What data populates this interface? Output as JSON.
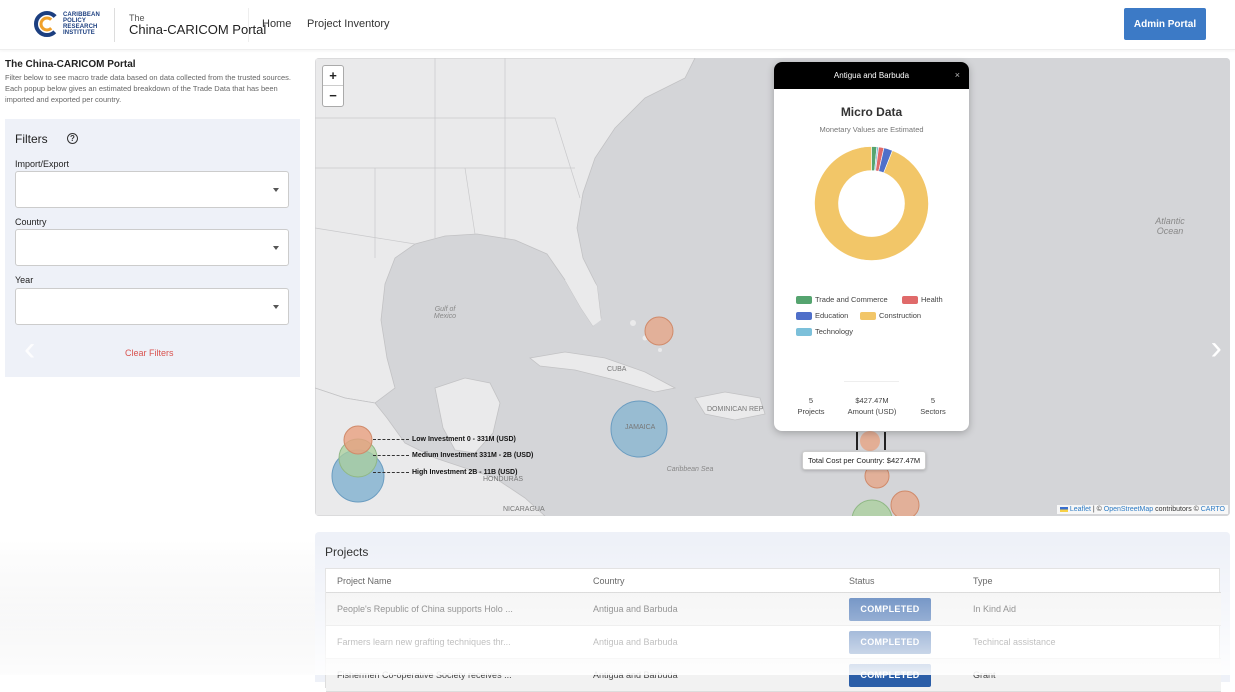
{
  "header": {
    "logo_lines": [
      "Caribbean",
      "Policy",
      "Research",
      "Institute"
    ],
    "brand_the": "The",
    "brand_name": "China-CARICOM Portal",
    "nav": [
      "Home",
      "Project Inventory"
    ],
    "admin_label": "Admin Portal"
  },
  "intro": {
    "title": "The China-CARICOM Portal",
    "text": "Filter below to see macro trade data based on data collected from the trusted sources. Each popup below gives an estimated breakdown of the Trade Data that has been imported and exported per country."
  },
  "filters": {
    "title": "Filters",
    "help_glyph": "?",
    "import_export_label": "Import/Export",
    "country_label": "Country",
    "year_label": "Year",
    "import_export_value": "",
    "country_value": "",
    "year_value": "",
    "clear_label": "Clear Filters"
  },
  "map": {
    "zoom_in": "+",
    "zoom_out": "−",
    "labels": {
      "gulf": "Gulf of Mexico",
      "atlantic": "Atlantic Ocean",
      "caribbean": "Caribbean Sea",
      "cuba": "CUBA",
      "jamaica": "JAMAICA",
      "dominican": "DOMINICAN REP",
      "honduras": "HONDURAS",
      "nicaragua": "NICARAGUA"
    },
    "legend": [
      {
        "label": "Low Investment 0 - 331M (USD)",
        "color": "#e8a07f"
      },
      {
        "label": "Medium Investment 331M - 2B (USD)",
        "color": "#a9cf9c"
      },
      {
        "label": "High Investment 2B - 11B (USD)",
        "color": "#7fb0d0"
      }
    ],
    "tooltip": "Total Cost per Country: $427.47M",
    "attribution_leaflet": "Leaflet",
    "attribution_rest": "| © OpenStreetMap contributors © CARTO",
    "attribution_osm": "OpenStreetMap",
    "attribution_carto": "CARTO"
  },
  "popup": {
    "country": "Antigua and Barbuda",
    "close": "×",
    "title": "Micro Data",
    "subtitle": "Monetary Values are Estimated",
    "legend": [
      {
        "label": "Trade and Commerce",
        "color": "#55a46f"
      },
      {
        "label": "Health",
        "color": "#e06a6a"
      },
      {
        "label": "Education",
        "color": "#4f6fc9"
      },
      {
        "label": "Construction",
        "color": "#f2c668"
      },
      {
        "label": "Technology",
        "color": "#7cc0da"
      }
    ],
    "stats": {
      "projects_value": "5",
      "projects_label": "Projects",
      "amount_value": "$427.47M",
      "amount_label": "Amount (USD)",
      "sectors_value": "5",
      "sectors_label": "Sectors"
    }
  },
  "chart_data": {
    "type": "pie",
    "categories": [
      "Trade and Commerce",
      "Health",
      "Education",
      "Construction",
      "Technology"
    ],
    "values": [
      1.5,
      1.5,
      2.5,
      94,
      0.5
    ],
    "title": "Micro Data",
    "subtitle": "Monetary Values are Estimated",
    "legend": "bottom"
  },
  "projects": {
    "title": "Projects",
    "headers": [
      "Project Name",
      "Country",
      "Status",
      "Type"
    ],
    "rows": [
      {
        "name": "People's Republic of China supports Holo ...",
        "country": "Antigua and Barbuda",
        "status": "COMPLETED",
        "type": "In Kind Aid"
      },
      {
        "name": "Farmers learn new grafting techniques thr...",
        "country": "Antigua and Barbuda",
        "status": "COMPLETED",
        "type": "Techincal assistance"
      },
      {
        "name": "Fishermen Co-operative Society receives ...",
        "country": "Antigua and Barbuda",
        "status": "COMPLETED",
        "type": "Grant"
      }
    ]
  }
}
